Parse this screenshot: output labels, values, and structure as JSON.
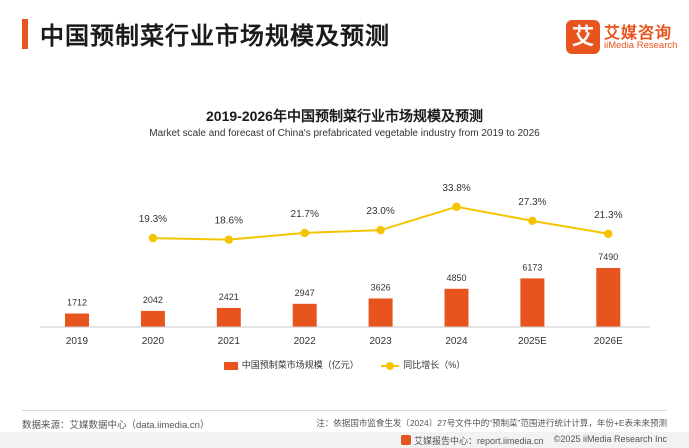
{
  "header": {
    "title": "中国预制菜行业市场规模及预测",
    "logo_mark": "艾",
    "logo_cn": "艾媒咨询",
    "logo_en": "iiMedia Research"
  },
  "colors": {
    "accent": "#e8541e",
    "bar": "#e8541e",
    "line": "#f5c400"
  },
  "chart_data": {
    "type": "bar",
    "title": "2019-2026年中国预制菜行业市场规模及预测",
    "subtitle": "Market scale and forecast of China's prefabricated vegetable industry from 2019 to 2026",
    "categories": [
      "2019",
      "2020",
      "2021",
      "2022",
      "2023",
      "2024",
      "2025E",
      "2026E"
    ],
    "series": [
      {
        "name": "中国预制菜市场规模（亿元）",
        "type": "bar",
        "values": [
          1712,
          2042,
          2421,
          2947,
          3626,
          4850,
          6173,
          7490
        ],
        "labels": [
          "1712",
          "2042",
          "2421",
          "2947",
          "3626",
          "4850",
          "6173",
          "7490"
        ]
      },
      {
        "name": "同比增长（%）",
        "type": "line",
        "x": [
          "2020",
          "2021",
          "2022",
          "2023",
          "2024",
          "2025E",
          "2026E"
        ],
        "values": [
          19.3,
          18.6,
          21.7,
          23.0,
          33.8,
          27.3,
          21.3
        ],
        "labels": [
          "19.3%",
          "18.6%",
          "21.7%",
          "23.0%",
          "33.8%",
          "27.3%",
          "21.3%"
        ]
      }
    ],
    "legend_position": "bottom",
    "grid": false
  },
  "footer": {
    "source": "数据来源：艾媒数据中心（data.iimedia.cn）",
    "note": "注：依据国市监食生发〔2024〕27号文件中的“预制菜”范围进行统计计算，年份+E表未来预测",
    "report_site": "艾媒报告中心：report.iimedia.cn",
    "copyright": "©2025  iiMedia Research  Inc"
  }
}
